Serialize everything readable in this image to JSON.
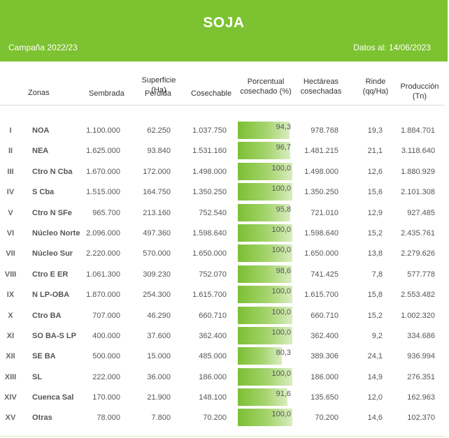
{
  "header": {
    "title": "SOJA",
    "campaign": "Campaña 2022/23",
    "datos": "Datos al: 14/06/2023"
  },
  "columns": {
    "zonas": "Zonas",
    "superficie": "Superficie (Ha)",
    "sembrada": "Sembrada",
    "perdida": "Perdida",
    "cosechable": "Cosechable",
    "porcentual_1": "Porcentual",
    "porcentual_2": "cosechado (%)",
    "hectareas_1": "Hectáreas",
    "hectareas_2": "cosechadas",
    "rinde_1": "Rinde",
    "rinde_2": "(qq/Ha)",
    "produccion": "Producción (Tn)"
  },
  "rows": [
    {
      "roman": "I",
      "zona": "NOA",
      "sembrada": "1.100.000",
      "perdida": "62.250",
      "cosechable": "1.037.750",
      "pct_label": "94,3",
      "pct": 94.3,
      "hectareas": "978.768",
      "rinde": "19,3",
      "produccion": "1.884.701"
    },
    {
      "roman": "II",
      "zona": "NEA",
      "sembrada": "1.625.000",
      "perdida": "93.840",
      "cosechable": "1.531.160",
      "pct_label": "96,7",
      "pct": 96.7,
      "hectareas": "1.481.215",
      "rinde": "21,1",
      "produccion": "3.118.640"
    },
    {
      "roman": "III",
      "zona": "Ctro N Cba",
      "sembrada": "1.670.000",
      "perdida": "172.000",
      "cosechable": "1.498.000",
      "pct_label": "100,0",
      "pct": 100.0,
      "hectareas": "1.498.000",
      "rinde": "12,6",
      "produccion": "1.880.929"
    },
    {
      "roman": "IV",
      "zona": "S Cba",
      "sembrada": "1.515.000",
      "perdida": "164.750",
      "cosechable": "1.350.250",
      "pct_label": "100,0",
      "pct": 100.0,
      "hectareas": "1.350.250",
      "rinde": "15,6",
      "produccion": "2.101.308"
    },
    {
      "roman": "V",
      "zona": "Ctro N SFe",
      "sembrada": "965.700",
      "perdida": "213.160",
      "cosechable": "752.540",
      "pct_label": "95,8",
      "pct": 95.8,
      "hectareas": "721.010",
      "rinde": "12,9",
      "produccion": "927.485"
    },
    {
      "roman": "VI",
      "zona": "Núcleo Norte",
      "sembrada": "2.096.000",
      "perdida": "497.360",
      "cosechable": "1.598.640",
      "pct_label": "100,0",
      "pct": 100.0,
      "hectareas": "1.598.640",
      "rinde": "15,2",
      "produccion": "2.435.761"
    },
    {
      "roman": "VII",
      "zona": "Núcleo Sur",
      "sembrada": "2.220.000",
      "perdida": "570.000",
      "cosechable": "1.650.000",
      "pct_label": "100,0",
      "pct": 100.0,
      "hectareas": "1.650.000",
      "rinde": "13,8",
      "produccion": "2.279.626"
    },
    {
      "roman": "VIII",
      "zona": "Ctro E ER",
      "sembrada": "1.061.300",
      "perdida": "309.230",
      "cosechable": "752.070",
      "pct_label": "98,6",
      "pct": 98.6,
      "hectareas": "741.425",
      "rinde": "7,8",
      "produccion": "577.778"
    },
    {
      "roman": "IX",
      "zona": "N LP-OBA",
      "sembrada": "1.870.000",
      "perdida": "254.300",
      "cosechable": "1.615.700",
      "pct_label": "100,0",
      "pct": 100.0,
      "hectareas": "1.615.700",
      "rinde": "15,8",
      "produccion": "2.553.482"
    },
    {
      "roman": "X",
      "zona": "Ctro BA",
      "sembrada": "707.000",
      "perdida": "46.290",
      "cosechable": "660.710",
      "pct_label": "100,0",
      "pct": 100.0,
      "hectareas": "660.710",
      "rinde": "15,2",
      "produccion": "1.002.320"
    },
    {
      "roman": "XI",
      "zona": "SO BA-S LP",
      "sembrada": "400.000",
      "perdida": "37.600",
      "cosechable": "362.400",
      "pct_label": "100,0",
      "pct": 100.0,
      "hectareas": "362.400",
      "rinde": "9,2",
      "produccion": "334.686"
    },
    {
      "roman": "XII",
      "zona": "SE BA",
      "sembrada": "500.000",
      "perdida": "15.000",
      "cosechable": "485.000",
      "pct_label": "80,3",
      "pct": 80.3,
      "hectareas": "389.306",
      "rinde": "24,1",
      "produccion": "936.994"
    },
    {
      "roman": "XIII",
      "zona": "SL",
      "sembrada": "222.000",
      "perdida": "36.000",
      "cosechable": "186.000",
      "pct_label": "100,0",
      "pct": 100.0,
      "hectareas": "186.000",
      "rinde": "14,9",
      "produccion": "276.351"
    },
    {
      "roman": "XIV",
      "zona": "Cuenca Sal",
      "sembrada": "170.000",
      "perdida": "21.900",
      "cosechable": "148.100",
      "pct_label": "91,6",
      "pct": 91.6,
      "hectareas": "135.650",
      "rinde": "12,0",
      "produccion": "162.963"
    },
    {
      "roman": "XV",
      "zona": "Otras",
      "sembrada": "78.000",
      "perdida": "7.800",
      "cosechable": "70.200",
      "pct_label": "100,0",
      "pct": 100.0,
      "hectareas": "70.200",
      "rinde": "14,6",
      "produccion": "102.370"
    }
  ]
}
